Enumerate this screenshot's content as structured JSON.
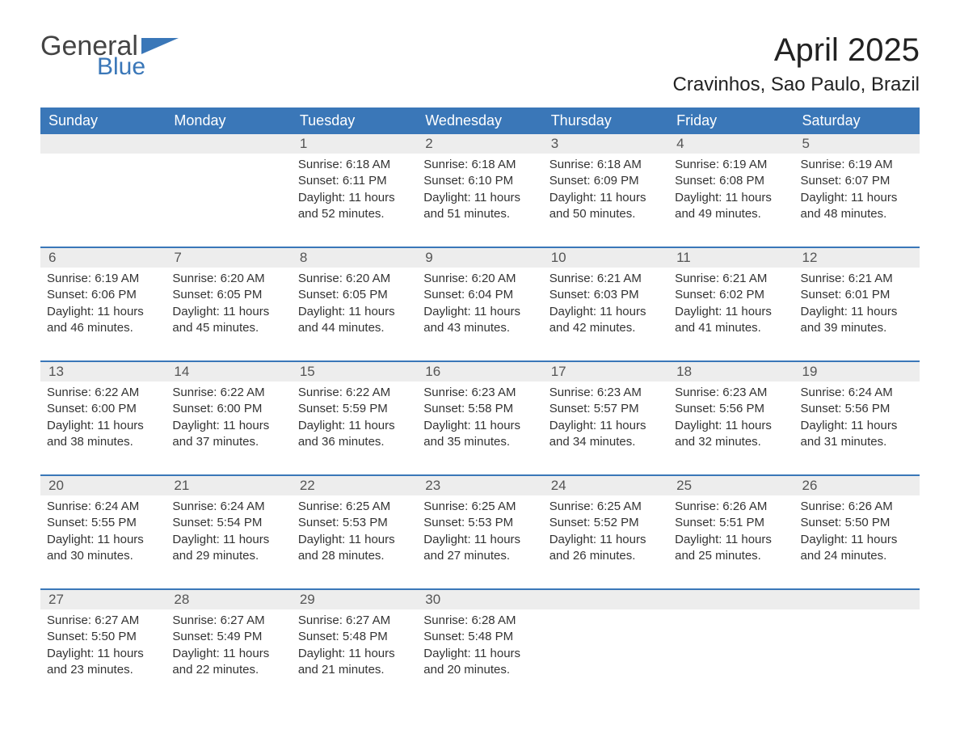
{
  "brand": {
    "general": "General",
    "blue": "Blue",
    "flag_color": "#3a77b8"
  },
  "title": "April 2025",
  "location": "Cravinhos, Sao Paulo, Brazil",
  "colors": {
    "header_bg": "#3a77b8",
    "header_text": "#ffffff",
    "daynum_bg": "#ededed",
    "daynum_text": "#555555",
    "body_text": "#333333",
    "row_border": "#3a77b8",
    "background": "#ffffff"
  },
  "typography": {
    "title_fontsize": 40,
    "subtitle_fontsize": 24,
    "header_fontsize": 18,
    "cell_fontsize": 15
  },
  "day_headers": [
    "Sunday",
    "Monday",
    "Tuesday",
    "Wednesday",
    "Thursday",
    "Friday",
    "Saturday"
  ],
  "weeks": [
    [
      null,
      null,
      {
        "day": "1",
        "sunrise": "Sunrise: 6:18 AM",
        "sunset": "Sunset: 6:11 PM",
        "dl1": "Daylight: 11 hours",
        "dl2": "and 52 minutes."
      },
      {
        "day": "2",
        "sunrise": "Sunrise: 6:18 AM",
        "sunset": "Sunset: 6:10 PM",
        "dl1": "Daylight: 11 hours",
        "dl2": "and 51 minutes."
      },
      {
        "day": "3",
        "sunrise": "Sunrise: 6:18 AM",
        "sunset": "Sunset: 6:09 PM",
        "dl1": "Daylight: 11 hours",
        "dl2": "and 50 minutes."
      },
      {
        "day": "4",
        "sunrise": "Sunrise: 6:19 AM",
        "sunset": "Sunset: 6:08 PM",
        "dl1": "Daylight: 11 hours",
        "dl2": "and 49 minutes."
      },
      {
        "day": "5",
        "sunrise": "Sunrise: 6:19 AM",
        "sunset": "Sunset: 6:07 PM",
        "dl1": "Daylight: 11 hours",
        "dl2": "and 48 minutes."
      }
    ],
    [
      {
        "day": "6",
        "sunrise": "Sunrise: 6:19 AM",
        "sunset": "Sunset: 6:06 PM",
        "dl1": "Daylight: 11 hours",
        "dl2": "and 46 minutes."
      },
      {
        "day": "7",
        "sunrise": "Sunrise: 6:20 AM",
        "sunset": "Sunset: 6:05 PM",
        "dl1": "Daylight: 11 hours",
        "dl2": "and 45 minutes."
      },
      {
        "day": "8",
        "sunrise": "Sunrise: 6:20 AM",
        "sunset": "Sunset: 6:05 PM",
        "dl1": "Daylight: 11 hours",
        "dl2": "and 44 minutes."
      },
      {
        "day": "9",
        "sunrise": "Sunrise: 6:20 AM",
        "sunset": "Sunset: 6:04 PM",
        "dl1": "Daylight: 11 hours",
        "dl2": "and 43 minutes."
      },
      {
        "day": "10",
        "sunrise": "Sunrise: 6:21 AM",
        "sunset": "Sunset: 6:03 PM",
        "dl1": "Daylight: 11 hours",
        "dl2": "and 42 minutes."
      },
      {
        "day": "11",
        "sunrise": "Sunrise: 6:21 AM",
        "sunset": "Sunset: 6:02 PM",
        "dl1": "Daylight: 11 hours",
        "dl2": "and 41 minutes."
      },
      {
        "day": "12",
        "sunrise": "Sunrise: 6:21 AM",
        "sunset": "Sunset: 6:01 PM",
        "dl1": "Daylight: 11 hours",
        "dl2": "and 39 minutes."
      }
    ],
    [
      {
        "day": "13",
        "sunrise": "Sunrise: 6:22 AM",
        "sunset": "Sunset: 6:00 PM",
        "dl1": "Daylight: 11 hours",
        "dl2": "and 38 minutes."
      },
      {
        "day": "14",
        "sunrise": "Sunrise: 6:22 AM",
        "sunset": "Sunset: 6:00 PM",
        "dl1": "Daylight: 11 hours",
        "dl2": "and 37 minutes."
      },
      {
        "day": "15",
        "sunrise": "Sunrise: 6:22 AM",
        "sunset": "Sunset: 5:59 PM",
        "dl1": "Daylight: 11 hours",
        "dl2": "and 36 minutes."
      },
      {
        "day": "16",
        "sunrise": "Sunrise: 6:23 AM",
        "sunset": "Sunset: 5:58 PM",
        "dl1": "Daylight: 11 hours",
        "dl2": "and 35 minutes."
      },
      {
        "day": "17",
        "sunrise": "Sunrise: 6:23 AM",
        "sunset": "Sunset: 5:57 PM",
        "dl1": "Daylight: 11 hours",
        "dl2": "and 34 minutes."
      },
      {
        "day": "18",
        "sunrise": "Sunrise: 6:23 AM",
        "sunset": "Sunset: 5:56 PM",
        "dl1": "Daylight: 11 hours",
        "dl2": "and 32 minutes."
      },
      {
        "day": "19",
        "sunrise": "Sunrise: 6:24 AM",
        "sunset": "Sunset: 5:56 PM",
        "dl1": "Daylight: 11 hours",
        "dl2": "and 31 minutes."
      }
    ],
    [
      {
        "day": "20",
        "sunrise": "Sunrise: 6:24 AM",
        "sunset": "Sunset: 5:55 PM",
        "dl1": "Daylight: 11 hours",
        "dl2": "and 30 minutes."
      },
      {
        "day": "21",
        "sunrise": "Sunrise: 6:24 AM",
        "sunset": "Sunset: 5:54 PM",
        "dl1": "Daylight: 11 hours",
        "dl2": "and 29 minutes."
      },
      {
        "day": "22",
        "sunrise": "Sunrise: 6:25 AM",
        "sunset": "Sunset: 5:53 PM",
        "dl1": "Daylight: 11 hours",
        "dl2": "and 28 minutes."
      },
      {
        "day": "23",
        "sunrise": "Sunrise: 6:25 AM",
        "sunset": "Sunset: 5:53 PM",
        "dl1": "Daylight: 11 hours",
        "dl2": "and 27 minutes."
      },
      {
        "day": "24",
        "sunrise": "Sunrise: 6:25 AM",
        "sunset": "Sunset: 5:52 PM",
        "dl1": "Daylight: 11 hours",
        "dl2": "and 26 minutes."
      },
      {
        "day": "25",
        "sunrise": "Sunrise: 6:26 AM",
        "sunset": "Sunset: 5:51 PM",
        "dl1": "Daylight: 11 hours",
        "dl2": "and 25 minutes."
      },
      {
        "day": "26",
        "sunrise": "Sunrise: 6:26 AM",
        "sunset": "Sunset: 5:50 PM",
        "dl1": "Daylight: 11 hours",
        "dl2": "and 24 minutes."
      }
    ],
    [
      {
        "day": "27",
        "sunrise": "Sunrise: 6:27 AM",
        "sunset": "Sunset: 5:50 PM",
        "dl1": "Daylight: 11 hours",
        "dl2": "and 23 minutes."
      },
      {
        "day": "28",
        "sunrise": "Sunrise: 6:27 AM",
        "sunset": "Sunset: 5:49 PM",
        "dl1": "Daylight: 11 hours",
        "dl2": "and 22 minutes."
      },
      {
        "day": "29",
        "sunrise": "Sunrise: 6:27 AM",
        "sunset": "Sunset: 5:48 PM",
        "dl1": "Daylight: 11 hours",
        "dl2": "and 21 minutes."
      },
      {
        "day": "30",
        "sunrise": "Sunrise: 6:28 AM",
        "sunset": "Sunset: 5:48 PM",
        "dl1": "Daylight: 11 hours",
        "dl2": "and 20 minutes."
      },
      null,
      null,
      null
    ]
  ]
}
